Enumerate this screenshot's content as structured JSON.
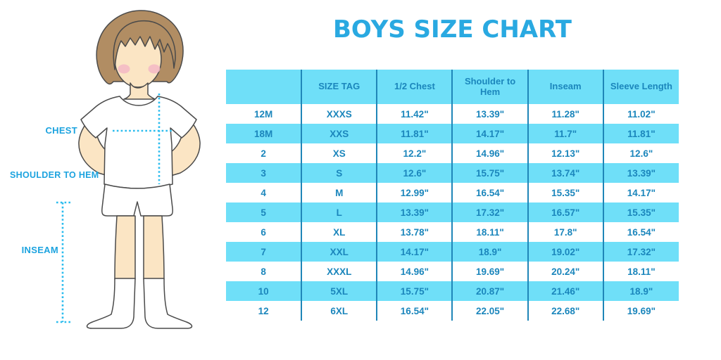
{
  "chart_data": {
    "type": "table",
    "title": "BOYS SIZE CHART",
    "columns": [
      "",
      "SIZE TAG",
      "1/2 Chest",
      "Shoulder to Hem",
      "Inseam",
      "Sleeve Length"
    ],
    "rows": [
      [
        "12M",
        "XXXS",
        "11.42\"",
        "13.39\"",
        "11.28\"",
        "11.02\""
      ],
      [
        "18M",
        "XXS",
        "11.81\"",
        "14.17\"",
        "11.7\"",
        "11.81\""
      ],
      [
        "2",
        "XS",
        "12.2\"",
        "14.96\"",
        "12.13\"",
        "12.6\""
      ],
      [
        "3",
        "S",
        "12.6\"",
        "15.75\"",
        "13.74\"",
        "13.39\""
      ],
      [
        "4",
        "M",
        "12.99\"",
        "16.54\"",
        "15.35\"",
        "14.17\""
      ],
      [
        "5",
        "L",
        "13.39\"",
        "17.32\"",
        "16.57\"",
        "15.35\""
      ],
      [
        "6",
        "XL",
        "13.78\"",
        "18.11\"",
        "17.8\"",
        "16.54\""
      ],
      [
        "7",
        "XXL",
        "14.17\"",
        "18.9\"",
        "19.02\"",
        "17.32\""
      ],
      [
        "8",
        "XXXL",
        "14.96\"",
        "19.69\"",
        "20.24\"",
        "18.11\""
      ],
      [
        "10",
        "5XL",
        "15.75\"",
        "20.87\"",
        "21.46\"",
        "18.9\""
      ],
      [
        "12",
        "6XL",
        "16.54\"",
        "22.05\"",
        "22.68\"",
        "19.69\""
      ]
    ],
    "layout": {
      "header_background": "blue",
      "alternating_row_colors": true,
      "first_data_row_background": "white",
      "grid": "vertical-lines-only"
    }
  },
  "illustration": {
    "figure": "toddler-boy-standing-front",
    "chest_label": "CHEST",
    "shoulder_to_hem_label": "SHOULDER TO HEM",
    "inseam_label": "INSEAM"
  },
  "colors": {
    "background": "#FFFFFF",
    "accent_title": "#29A9E1",
    "cell_blue": "#6FDFF8",
    "grid_line": "#1F86B8",
    "table_text": "#1B86BC",
    "label_blue": "#1CA3DF",
    "dotted_line": "#2BBCEE",
    "hair": "#B18D63",
    "skin": "#FBE5C4",
    "blush": "#F4B9C6",
    "outline": "#4A4A4A"
  }
}
